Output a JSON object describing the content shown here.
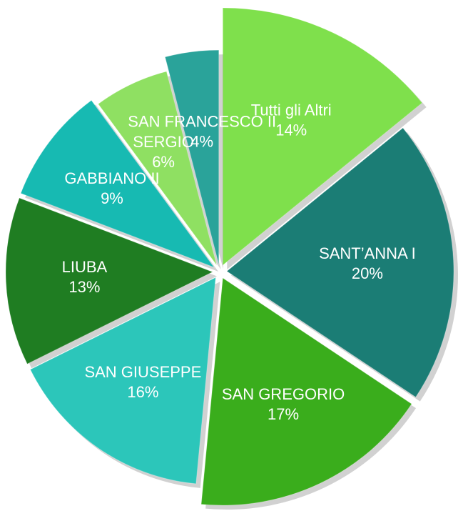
{
  "chart_data": {
    "type": "pie",
    "categories": [
      "Tutti gli Altri",
      "SANT’ANNA I",
      "SAN GREGORIO",
      "SAN GIUSEPPE",
      "LIUBA",
      "GABBIANO II",
      "SERGIO",
      "SAN FRANCESCO II"
    ],
    "values": [
      14,
      20,
      17,
      16,
      13,
      9,
      6,
      4
    ],
    "value_labels": [
      "14%",
      "20%",
      "17%",
      "16%",
      "13%",
      "9%",
      "6%",
      "4%"
    ],
    "colors": [
      "#7fe04c",
      "#1b7d75",
      "#3aad1c",
      "#2cc6ba",
      "#1f7d22",
      "#17bab2",
      "#8fe062",
      "#2aa39a"
    ]
  }
}
